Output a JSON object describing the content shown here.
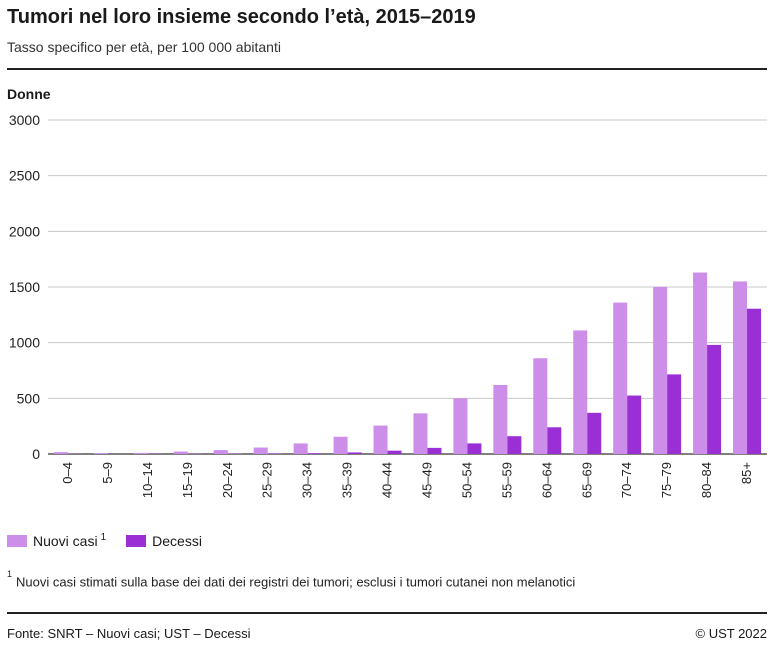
{
  "chart_data": {
    "type": "bar",
    "title": "Tumori nel loro insieme secondo l’età, 2015–2019",
    "subtitle": "Tasso specifico per età, per 100 000 abitanti",
    "panel_label": "Donne",
    "xlabel": "",
    "ylabel": "",
    "ylim": [
      0,
      3000
    ],
    "yticks": [
      0,
      500,
      1000,
      1500,
      2000,
      2500,
      3000
    ],
    "yticks_labels": [
      "0",
      "500",
      "1000",
      "1500",
      "2000",
      "2500",
      "3000"
    ],
    "grid": true,
    "categories": [
      "0–4",
      "5–9",
      "10–14",
      "15–19",
      "20–24",
      "25–29",
      "30–34",
      "35–39",
      "40–44",
      "45–49",
      "50–54",
      "55–59",
      "60–64",
      "65–69",
      "70–74",
      "75–79",
      "80–84",
      "85+"
    ],
    "series": [
      {
        "name": "Nuovi casi",
        "footnote_marker": "1",
        "color": "#cc8ee8",
        "values": [
          17,
          8,
          10,
          22,
          35,
          58,
          95,
          155,
          255,
          365,
          500,
          620,
          860,
          1110,
          1360,
          1500,
          1630,
          1550
        ]
      },
      {
        "name": "Decessi",
        "color": "#9b2fd6",
        "values": [
          2,
          1,
          2,
          3,
          4,
          5,
          7,
          14,
          30,
          55,
          95,
          160,
          240,
          370,
          525,
          715,
          980,
          1305
        ]
      }
    ]
  },
  "legend": {
    "item1": "Nuovi casi",
    "item1_sup": "1",
    "item2": "Decessi"
  },
  "footnote": {
    "marker": "1",
    "text": "Nuovi casi stimati sulla base dei dati dei registri dei tumori; esclusi i tumori cutanei non melanotici"
  },
  "source": "Fonte: SNRT – Nuovi casi; UST – Decessi",
  "copyright": "© UST 2022"
}
